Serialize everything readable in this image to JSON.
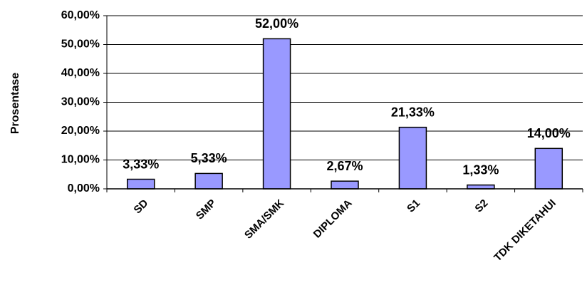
{
  "chart_data": {
    "type": "bar",
    "y_label": "Prosentase",
    "categories": [
      "SD",
      "SMP",
      "SMA/SMK",
      "DIPLOMA",
      "S1",
      "S2",
      "TDK DIKETAHUI"
    ],
    "values": [
      3.33,
      5.33,
      52,
      2.67,
      21.33,
      1.33,
      14
    ],
    "value_labels": [
      "3,33%",
      "5,33%",
      "52,00%",
      "2,67%",
      "21,33%",
      "1,33%",
      "14,00%"
    ],
    "color": "#9999ff",
    "ylim": [
      0,
      60
    ],
    "yticks": [
      {
        "value": 0,
        "label": "0,00%"
      },
      {
        "value": 10,
        "label": "10,00%"
      },
      {
        "value": 20,
        "label": "20,00%"
      },
      {
        "value": 30,
        "label": "30,00%"
      },
      {
        "value": 40,
        "label": "40,00%"
      },
      {
        "value": 50,
        "label": "50,00%"
      },
      {
        "value": 60,
        "label": "60,00%"
      }
    ],
    "grid": true
  }
}
